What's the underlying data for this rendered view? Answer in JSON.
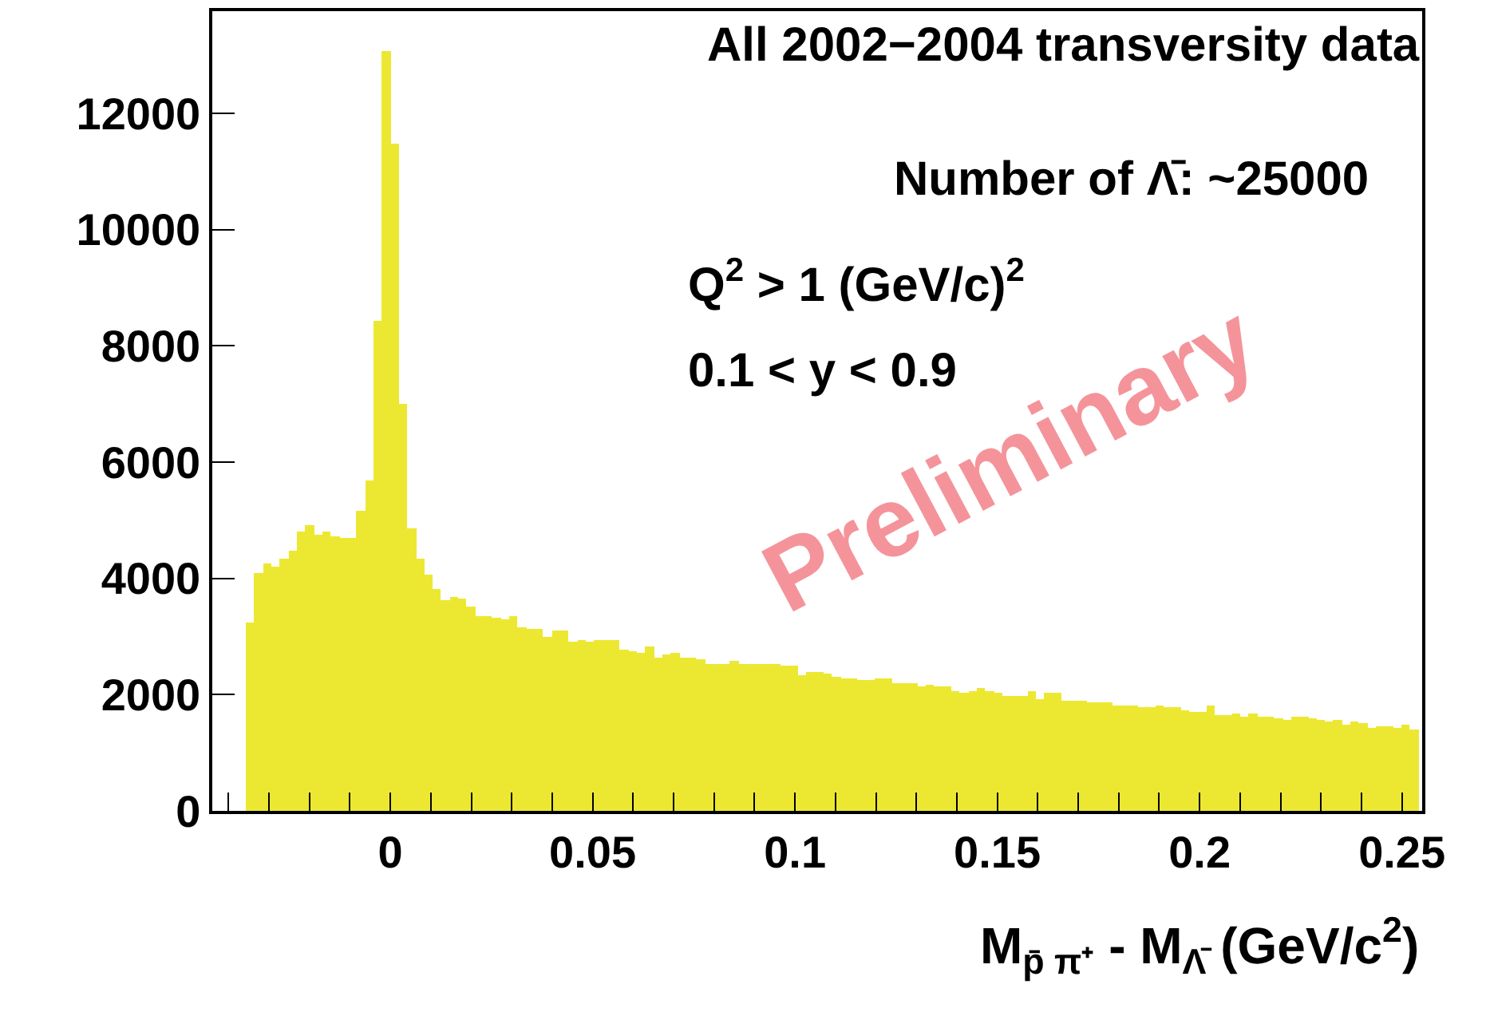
{
  "chart_data": {
    "type": "histogram",
    "title": "All 2002−2004 transversity data",
    "xlabel": "M$_{p̄ π⁺}$ - M$_{Λ̄}$ (GeV/c$^{2}$)",
    "annotations": [
      "Number of Λ̄: ~25000",
      "Q$^{2}$ > 1 (GeV/c)$^{2}$",
      "0.1 < y < 0.9",
      "Preliminary"
    ],
    "color": "#ece832",
    "bins": [
      -0.0357,
      -0.0336,
      -0.0315,
      -0.0294,
      -0.0273,
      -0.0252,
      -0.0231,
      -0.021,
      -0.0189,
      -0.0168,
      -0.0147,
      -0.0126,
      -0.0105,
      -0.0084,
      -0.0063,
      -0.0042,
      -0.0021,
      0,
      0.0021,
      0.0042,
      0.0063,
      0.0084,
      0.0105,
      0.0126,
      0.0147,
      0.0168,
      0.0189,
      0.021,
      0.0231,
      0.0252,
      0.0273,
      0.0294,
      0.0315,
      0.0336,
      0.0357,
      0.0378,
      0.0399,
      0.042,
      0.0441,
      0.0462,
      0.0483,
      0.0504,
      0.0525,
      0.0546,
      0.0567,
      0.0588,
      0.0609,
      0.063,
      0.0651,
      0.0672,
      0.0693,
      0.0714,
      0.0735,
      0.0756,
      0.0777,
      0.0798,
      0.0819,
      0.084,
      0.0861,
      0.0882,
      0.0903,
      0.0924,
      0.0945,
      0.0966,
      0.0987,
      0.1008,
      0.1029,
      0.105,
      0.1071,
      0.1092,
      0.1113,
      0.1134,
      0.1155,
      0.1176,
      0.1197,
      0.1218,
      0.1239,
      0.126,
      0.1281,
      0.1302,
      0.1323,
      0.1344,
      0.1365,
      0.1386,
      0.1407,
      0.1428,
      0.1449,
      0.147,
      0.1491,
      0.1512,
      0.1533,
      0.1554,
      0.1575,
      0.1596,
      0.1617,
      0.1638,
      0.1659,
      0.168,
      0.1701,
      0.1722,
      0.1743,
      0.1764,
      0.1785,
      0.1806,
      0.1827,
      0.1848,
      0.1869,
      0.189,
      0.1911,
      0.1932,
      0.1953,
      0.1974,
      0.1995,
      0.2016,
      0.2037,
      0.2058,
      0.2079,
      0.21,
      0.2121,
      0.2142,
      0.2163,
      0.2184,
      0.2205,
      0.2226,
      0.2247,
      0.2268,
      0.2289,
      0.231,
      0.2331,
      0.2352,
      0.2373,
      0.2394,
      0.2415,
      0.2436,
      0.2457,
      0.2478,
      0.2499,
      0.252,
      0.2541
    ],
    "values": [
      3230,
      4100,
      4260,
      4210,
      4330,
      4490,
      4810,
      4920,
      4760,
      4810,
      4730,
      4700,
      4700,
      5150,
      5680,
      8440,
      13080,
      11490,
      7010,
      4850,
      4330,
      4070,
      3820,
      3620,
      3690,
      3640,
      3510,
      3360,
      3360,
      3320,
      3300,
      3340,
      3160,
      3140,
      3140,
      3000,
      3110,
      3090,
      2900,
      2930,
      2900,
      2950,
      2950,
      2950,
      2770,
      2740,
      2720,
      2840,
      2650,
      2700,
      2720,
      2650,
      2640,
      2610,
      2540,
      2520,
      2520,
      2570,
      2520,
      2540,
      2540,
      2520,
      2520,
      2500,
      2500,
      2340,
      2380,
      2380,
      2370,
      2320,
      2290,
      2290,
      2260,
      2260,
      2290,
      2290,
      2210,
      2200,
      2200,
      2150,
      2170,
      2150,
      2150,
      2060,
      2030,
      2050,
      2120,
      2060,
      2040,
      1990,
      1990,
      1990,
      2060,
      1910,
      2030,
      2030,
      1900,
      1900,
      1900,
      1880,
      1880,
      1870,
      1820,
      1820,
      1820,
      1790,
      1790,
      1800,
      1790,
      1780,
      1730,
      1710,
      1690,
      1800,
      1650,
      1640,
      1680,
      1610,
      1670,
      1630,
      1620,
      1590,
      1570,
      1610,
      1610,
      1580,
      1560,
      1550,
      1570,
      1490,
      1550,
      1500,
      1440,
      1460,
      1460,
      1440,
      1470,
      1400
    ],
    "xlim": [
      -0.044,
      0.255
    ],
    "xticks": [
      {
        "value": -0.04,
        "label": null
      },
      {
        "value": -0.03,
        "label": null
      },
      {
        "value": -0.02,
        "label": null
      },
      {
        "value": -0.01,
        "label": null
      },
      0,
      {
        "value": 0.01,
        "label": null
      },
      {
        "value": 0.02,
        "label": null
      },
      {
        "value": 0.03,
        "label": null
      },
      {
        "value": 0.04,
        "label": null
      },
      0.05,
      {
        "value": 0.06,
        "label": null
      },
      {
        "value": 0.07,
        "label": null
      },
      {
        "value": 0.08,
        "label": null
      },
      {
        "value": 0.09,
        "label": null
      },
      0.1,
      {
        "value": 0.11,
        "label": null
      },
      {
        "value": 0.12,
        "label": null
      },
      {
        "value": 0.13,
        "label": null
      },
      {
        "value": 0.14,
        "label": null
      },
      0.15,
      {
        "value": 0.16,
        "label": null
      },
      {
        "value": 0.17,
        "label": null
      },
      {
        "value": 0.18,
        "label": null
      },
      {
        "value": 0.19,
        "label": null
      },
      0.2,
      {
        "value": 0.21,
        "label": null
      },
      {
        "value": 0.22,
        "label": null
      },
      {
        "value": 0.23,
        "label": null
      },
      {
        "value": 0.24,
        "label": null
      },
      0.25
    ],
    "ylim": [
      0,
      13760
    ],
    "yticks": [
      0,
      2000,
      4000,
      6000,
      8000,
      10000,
      12000
    ],
    "grid": false
  }
}
